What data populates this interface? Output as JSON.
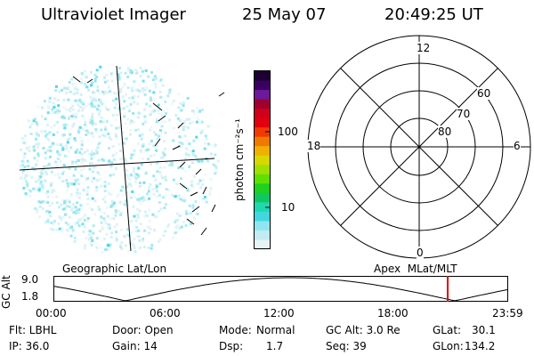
{
  "header": {
    "instrument": "Ultraviolet Imager",
    "date": "25 May 07",
    "time": "20:49:25 UT"
  },
  "colorbar": {
    "unit_label": "photon cm⁻²s⁻¹",
    "ticks": [
      "100",
      "10"
    ],
    "colors_top_to_bottom": [
      "#1c0033",
      "#3a0060",
      "#6a1a9a",
      "#a00030",
      "#d0001a",
      "#e0000e",
      "#f03a00",
      "#f07a00",
      "#f0b000",
      "#d8d800",
      "#a0e000",
      "#60e000",
      "#20d020",
      "#10c860",
      "#20d8b0",
      "#40d8e0",
      "#90e6ef",
      "#c2ecf2",
      "#e6f4f6"
    ]
  },
  "image_panel": {
    "caption": "Geographic Lat/Lon",
    "speckle_color": "#8fe3ef"
  },
  "polar_panel": {
    "caption": "Apex  MLat/MLT",
    "mlt_labels": {
      "top": "12",
      "left": "18",
      "right": "6",
      "bottom": "0"
    },
    "mlat_labels": [
      "60",
      "70",
      "80"
    ]
  },
  "altitude_strip": {
    "axis_label": "GC Alt",
    "y_ticks": [
      "9.0",
      "1.8"
    ],
    "x_ticks": [
      "00:00",
      "06:00",
      "12:00",
      "18:00",
      "23:59"
    ],
    "current_time_marker_color": "#e00000"
  },
  "footer": {
    "col1": [
      "Flt: LBHL",
      "IP: 36.0"
    ],
    "col2": [
      "Door: Open",
      "Gain: 14"
    ],
    "col3_a": [
      "Mode:",
      "Normal"
    ],
    "col3_b": [
      "Dsp:",
      "1.7"
    ],
    "col4": [
      "GC Alt: 3.0 Re",
      "Seq: 39"
    ],
    "col5": [
      "GLat:",
      "30.1",
      "GLon:",
      "134.2"
    ]
  }
}
